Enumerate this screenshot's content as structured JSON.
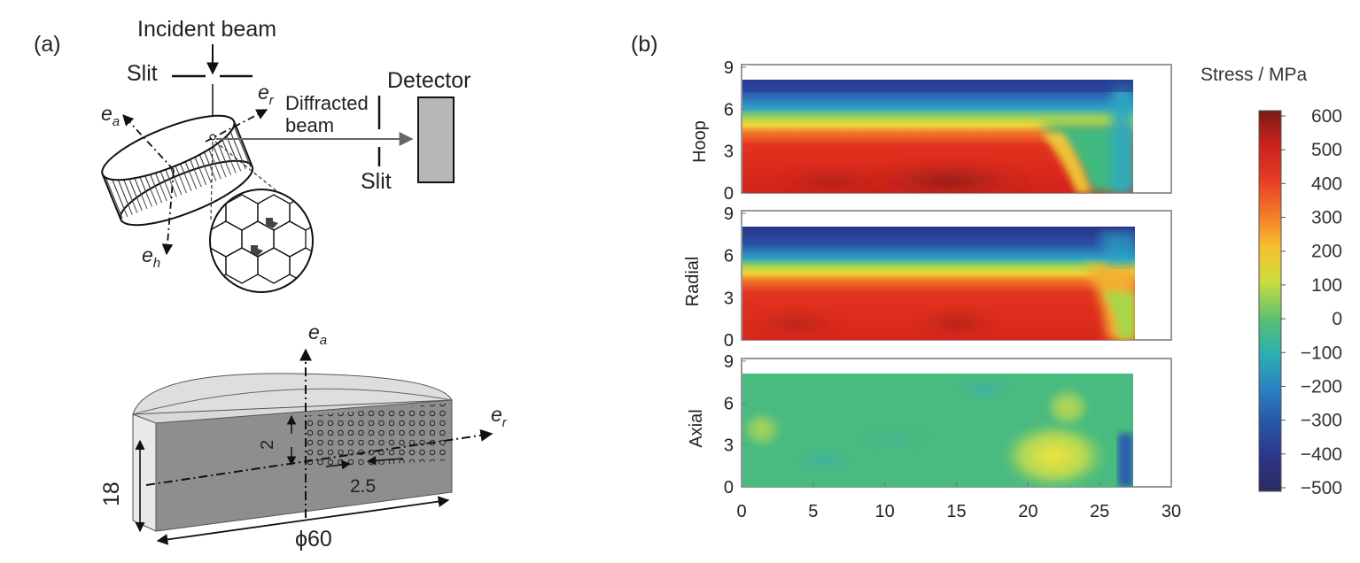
{
  "panel_a": {
    "label": "(a)",
    "incident_beam": "Incident beam",
    "slit_top": "Slit",
    "slit_bottom": "Slit",
    "detector": "Detector",
    "diffracted_line1": "Diffracted",
    "diffracted_line2": "beam",
    "axis_symbol": "e",
    "axis_sub_a": "a",
    "axis_sub_r": "r",
    "axis_sub_h": "h",
    "dim_height": "18",
    "dim_spacing_v": "2",
    "dim_spacing_h": "2.5",
    "dim_diameter": "ϕ60"
  },
  "panel_b": {
    "label": "(b)",
    "colorbar_title": "Stress / MPa",
    "colorbar_ticks": [
      "600",
      "500",
      "400",
      "300",
      "200",
      "100",
      "0",
      "−100",
      "−200",
      "−300",
      "−400",
      "−500"
    ],
    "colormap": [
      "#7f1f17",
      "#d7261e",
      "#ef5a28",
      "#f7a12b",
      "#f5e83a",
      "#a4cf4d",
      "#3fb97f",
      "#27a7c7",
      "#2a6fb6",
      "#283c96",
      "#2b2a70"
    ],
    "maps": [
      {
        "name": "Hoop",
        "yticks": [
          "0",
          "3",
          "6",
          "9"
        ]
      },
      {
        "name": "Radial",
        "yticks": [
          "0",
          "3",
          "6",
          "9"
        ]
      },
      {
        "name": "Axial",
        "yticks": [
          "0",
          "3",
          "6",
          "9"
        ]
      }
    ],
    "xticks": [
      "0",
      "5",
      "10",
      "15",
      "20",
      "25",
      "30"
    ]
  }
}
